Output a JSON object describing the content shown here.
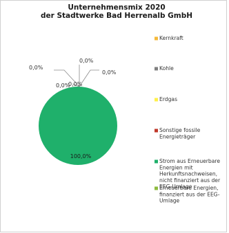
{
  "chart_data": {
    "type": "pie",
    "title": [
      "Unternehmensmix 2020",
      "der Stadtwerke Bad Herrenalb GmbH"
    ],
    "slices": [
      {
        "name": "Kernkraft",
        "value": 0.0,
        "label": "0,0%",
        "color": "#f5b93a",
        "legend_lines": [
          "Kernkraft"
        ]
      },
      {
        "name": "Kohle",
        "value": 0.0,
        "label": "0,0%",
        "color": "#7f7f7f",
        "legend_lines": [
          "Kohle"
        ]
      },
      {
        "name": "Erdgas",
        "value": 0.0,
        "label": "0,0%",
        "color": "#fff04a",
        "legend_lines": [
          "Erdgas"
        ]
      },
      {
        "name": "Sonstige fossile Energieträger",
        "value": 0.0,
        "label": "0,0%",
        "color": "#c0392b",
        "legend_lines": [
          "Sonstige fossile",
          "Energieträger"
        ]
      },
      {
        "name": "Strom aus Erneuerbaren Energien mit Herkunftsnachweisen, nicht finanziert aus der EEG-Umlage",
        "value": 100.0,
        "label": "100,0%",
        "color": "#1fb06b",
        "legend_lines": [
          "Strom aus Erneuerbare",
          "Energien mit",
          "Herkunftsnachweisen,",
          "nicht finanziert aus der",
          "EEG-Umlage"
        ]
      },
      {
        "name": "Erneuerbare Energien, finanziert aus der EEG-Umlage",
        "value": 0.0,
        "label": "0,0%",
        "color": "#8dbb3f",
        "legend_lines": [
          "Erneuerbare Energien,",
          "finanziert aus der EEG-",
          "Umlage"
        ]
      }
    ],
    "legend_position": "right"
  }
}
